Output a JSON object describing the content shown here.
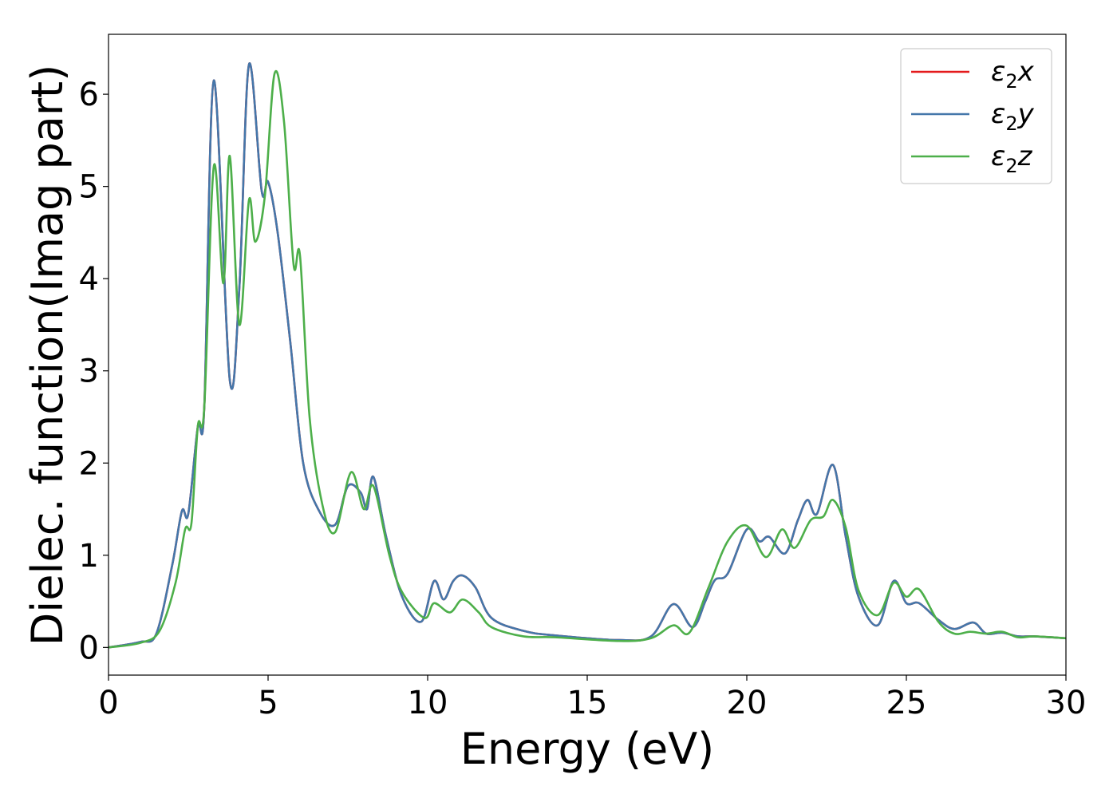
{
  "chart_data": {
    "type": "line",
    "title": "",
    "xlabel": "Energy (eV)",
    "ylabel": "Dielec. function(Imag part)",
    "xlim": [
      0,
      30
    ],
    "ylim": [
      -0.3,
      6.65
    ],
    "xticks": [
      0,
      5,
      10,
      15,
      20,
      25,
      30
    ],
    "yticks": [
      0,
      1,
      2,
      3,
      4,
      5,
      6
    ],
    "grid": false,
    "legend_position": "top-right",
    "series": [
      {
        "name": "ε2x",
        "legend": {
          "base": "ε",
          "sub": "2",
          "var": "x"
        },
        "color": "#e41a1c",
        "points": [
          [
            0,
            0
          ],
          [
            1,
            0.06
          ],
          [
            1.5,
            0.15
          ],
          [
            2.0,
            0.9
          ],
          [
            2.3,
            1.48
          ],
          [
            2.5,
            1.45
          ],
          [
            2.8,
            2.4
          ],
          [
            3.0,
            2.6
          ],
          [
            3.3,
            6.15
          ],
          [
            3.8,
            2.9
          ],
          [
            4.1,
            3.9
          ],
          [
            4.4,
            6.32
          ],
          [
            4.8,
            4.95
          ],
          [
            5.0,
            5.05
          ],
          [
            5.3,
            4.5
          ],
          [
            5.7,
            3.3
          ],
          [
            6.1,
            2.0
          ],
          [
            6.6,
            1.48
          ],
          [
            7.1,
            1.33
          ],
          [
            7.5,
            1.75
          ],
          [
            7.9,
            1.68
          ],
          [
            8.1,
            1.5
          ],
          [
            8.3,
            1.85
          ],
          [
            8.7,
            1.2
          ],
          [
            9.2,
            0.55
          ],
          [
            9.8,
            0.28
          ],
          [
            10.2,
            0.72
          ],
          [
            10.5,
            0.52
          ],
          [
            10.8,
            0.72
          ],
          [
            11.1,
            0.78
          ],
          [
            11.5,
            0.65
          ],
          [
            12.0,
            0.32
          ],
          [
            13.0,
            0.18
          ],
          [
            14.0,
            0.13
          ],
          [
            16.0,
            0.08
          ],
          [
            17.0,
            0.12
          ],
          [
            17.7,
            0.47
          ],
          [
            18.3,
            0.22
          ],
          [
            18.7,
            0.5
          ],
          [
            19.0,
            0.73
          ],
          [
            19.4,
            0.8
          ],
          [
            20.0,
            1.28
          ],
          [
            20.4,
            1.15
          ],
          [
            20.7,
            1.2
          ],
          [
            21.2,
            1.02
          ],
          [
            21.6,
            1.38
          ],
          [
            21.9,
            1.6
          ],
          [
            22.2,
            1.45
          ],
          [
            22.7,
            1.98
          ],
          [
            23.1,
            1.2
          ],
          [
            23.5,
            0.55
          ],
          [
            24.1,
            0.24
          ],
          [
            24.6,
            0.72
          ],
          [
            25.0,
            0.48
          ],
          [
            25.4,
            0.48
          ],
          [
            26.0,
            0.3
          ],
          [
            26.5,
            0.2
          ],
          [
            27.1,
            0.27
          ],
          [
            27.5,
            0.15
          ],
          [
            28.0,
            0.16
          ],
          [
            28.5,
            0.12
          ],
          [
            29.0,
            0.12
          ],
          [
            30.0,
            0.1
          ]
        ]
      },
      {
        "name": "ε2y",
        "legend": {
          "base": "ε",
          "sub": "2",
          "var": "y"
        },
        "color": "#4477aa",
        "points": [
          [
            0,
            0
          ],
          [
            1,
            0.06
          ],
          [
            1.5,
            0.15
          ],
          [
            2.0,
            0.9
          ],
          [
            2.3,
            1.48
          ],
          [
            2.5,
            1.45
          ],
          [
            2.8,
            2.4
          ],
          [
            3.0,
            2.6
          ],
          [
            3.3,
            6.15
          ],
          [
            3.8,
            2.9
          ],
          [
            4.1,
            3.9
          ],
          [
            4.4,
            6.32
          ],
          [
            4.8,
            4.95
          ],
          [
            5.0,
            5.05
          ],
          [
            5.3,
            4.5
          ],
          [
            5.7,
            3.3
          ],
          [
            6.1,
            2.0
          ],
          [
            6.6,
            1.48
          ],
          [
            7.1,
            1.33
          ],
          [
            7.5,
            1.75
          ],
          [
            7.9,
            1.68
          ],
          [
            8.1,
            1.5
          ],
          [
            8.3,
            1.85
          ],
          [
            8.7,
            1.2
          ],
          [
            9.2,
            0.55
          ],
          [
            9.8,
            0.28
          ],
          [
            10.2,
            0.72
          ],
          [
            10.5,
            0.52
          ],
          [
            10.8,
            0.72
          ],
          [
            11.1,
            0.78
          ],
          [
            11.5,
            0.65
          ],
          [
            12.0,
            0.32
          ],
          [
            13.0,
            0.18
          ],
          [
            14.0,
            0.13
          ],
          [
            16.0,
            0.08
          ],
          [
            17.0,
            0.12
          ],
          [
            17.7,
            0.47
          ],
          [
            18.3,
            0.22
          ],
          [
            18.7,
            0.5
          ],
          [
            19.0,
            0.73
          ],
          [
            19.4,
            0.8
          ],
          [
            20.0,
            1.28
          ],
          [
            20.4,
            1.15
          ],
          [
            20.7,
            1.2
          ],
          [
            21.2,
            1.02
          ],
          [
            21.6,
            1.38
          ],
          [
            21.9,
            1.6
          ],
          [
            22.2,
            1.45
          ],
          [
            22.7,
            1.98
          ],
          [
            23.1,
            1.2
          ],
          [
            23.5,
            0.55
          ],
          [
            24.1,
            0.24
          ],
          [
            24.6,
            0.72
          ],
          [
            25.0,
            0.48
          ],
          [
            25.4,
            0.48
          ],
          [
            26.0,
            0.3
          ],
          [
            26.5,
            0.2
          ],
          [
            27.1,
            0.27
          ],
          [
            27.5,
            0.15
          ],
          [
            28.0,
            0.16
          ],
          [
            28.5,
            0.12
          ],
          [
            29.0,
            0.12
          ],
          [
            30.0,
            0.1
          ]
        ]
      },
      {
        "name": "ε2z",
        "legend": {
          "base": "ε",
          "sub": "2",
          "var": "z"
        },
        "color": "#4daf4a",
        "points": [
          [
            0,
            0
          ],
          [
            1,
            0.05
          ],
          [
            1.6,
            0.18
          ],
          [
            2.1,
            0.7
          ],
          [
            2.4,
            1.28
          ],
          [
            2.6,
            1.35
          ],
          [
            2.8,
            2.4
          ],
          [
            3.0,
            2.6
          ],
          [
            3.3,
            5.22
          ],
          [
            3.6,
            3.95
          ],
          [
            3.8,
            5.33
          ],
          [
            4.1,
            3.5
          ],
          [
            4.4,
            4.85
          ],
          [
            4.6,
            4.4
          ],
          [
            4.9,
            4.9
          ],
          [
            5.2,
            6.22
          ],
          [
            5.5,
            5.7
          ],
          [
            5.8,
            4.15
          ],
          [
            6.0,
            4.25
          ],
          [
            6.3,
            2.5
          ],
          [
            6.7,
            1.55
          ],
          [
            7.1,
            1.25
          ],
          [
            7.6,
            1.9
          ],
          [
            8.0,
            1.5
          ],
          [
            8.3,
            1.75
          ],
          [
            8.8,
            1.0
          ],
          [
            9.2,
            0.6
          ],
          [
            9.9,
            0.32
          ],
          [
            10.2,
            0.48
          ],
          [
            10.7,
            0.38
          ],
          [
            11.1,
            0.52
          ],
          [
            11.6,
            0.38
          ],
          [
            12.0,
            0.22
          ],
          [
            13.0,
            0.12
          ],
          [
            14.0,
            0.11
          ],
          [
            16.0,
            0.07
          ],
          [
            17.0,
            0.1
          ],
          [
            17.7,
            0.24
          ],
          [
            18.2,
            0.16
          ],
          [
            18.8,
            0.65
          ],
          [
            19.4,
            1.15
          ],
          [
            20.0,
            1.32
          ],
          [
            20.6,
            0.98
          ],
          [
            21.1,
            1.28
          ],
          [
            21.5,
            1.08
          ],
          [
            22.0,
            1.38
          ],
          [
            22.4,
            1.42
          ],
          [
            22.7,
            1.6
          ],
          [
            23.1,
            1.3
          ],
          [
            23.5,
            0.62
          ],
          [
            24.1,
            0.35
          ],
          [
            24.6,
            0.7
          ],
          [
            25.0,
            0.55
          ],
          [
            25.4,
            0.63
          ],
          [
            26.0,
            0.28
          ],
          [
            26.5,
            0.15
          ],
          [
            27.0,
            0.17
          ],
          [
            27.5,
            0.15
          ],
          [
            28.0,
            0.17
          ],
          [
            28.5,
            0.11
          ],
          [
            29.0,
            0.12
          ],
          [
            30.0,
            0.1
          ]
        ]
      }
    ]
  }
}
